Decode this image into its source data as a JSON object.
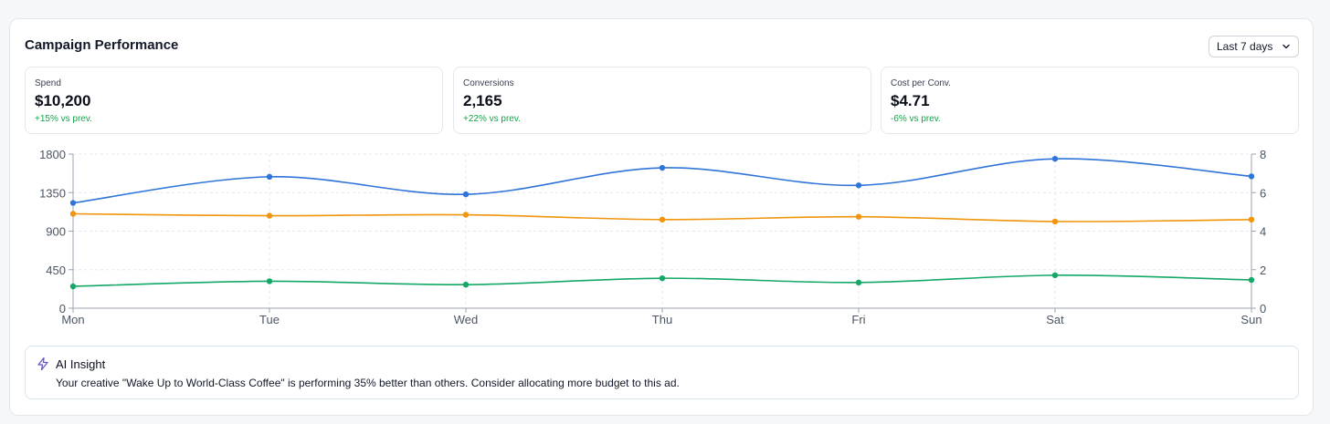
{
  "header": {
    "title": "Campaign Performance",
    "range_select": {
      "value": "Last 7 days",
      "icon": "chevron-down-icon"
    }
  },
  "kpis": [
    {
      "label": "Spend",
      "value": "$10,200",
      "change": "+15% vs prev."
    },
    {
      "label": "Conversions",
      "value": "2,165",
      "change": "+22% vs prev."
    },
    {
      "label": "Cost per Conv.",
      "value": "$4.71",
      "change": "-6% vs prev."
    }
  ],
  "colors": {
    "positive": "#16a34a",
    "series_blue": "#2f74d8",
    "series_orange": "#f0950c",
    "series_green": "#14a866"
  },
  "chart_data": {
    "type": "line",
    "categories": [
      "Mon",
      "Tue",
      "Wed",
      "Thu",
      "Fri",
      "Sat",
      "Sun"
    ],
    "y_left": {
      "ticks": [
        "0",
        "450",
        "900",
        "1350",
        "1800"
      ],
      "range": [
        0,
        1800
      ]
    },
    "y_right": {
      "ticks": [
        "0",
        "2",
        "4",
        "6",
        "8"
      ],
      "range": [
        0,
        8
      ]
    },
    "grid": true,
    "series": [
      {
        "axis": "left",
        "color": "#2f74d8",
        "values": [
          1230,
          1535,
          1330,
          1640,
          1435,
          1745,
          1540
        ]
      },
      {
        "axis": "right",
        "color": "#f0950c",
        "values": [
          4.9,
          4.8,
          4.85,
          4.6,
          4.75,
          4.5,
          4.6
        ]
      },
      {
        "axis": "left",
        "color": "#14a866",
        "values": [
          255,
          315,
          275,
          350,
          300,
          385,
          330
        ]
      }
    ]
  },
  "insight": {
    "icon": "lightning-icon",
    "title": "AI Insight",
    "text": "Your creative \"Wake Up to World-Class Coffee\" is performing 35% better than others. Consider allocating more budget to this ad."
  }
}
